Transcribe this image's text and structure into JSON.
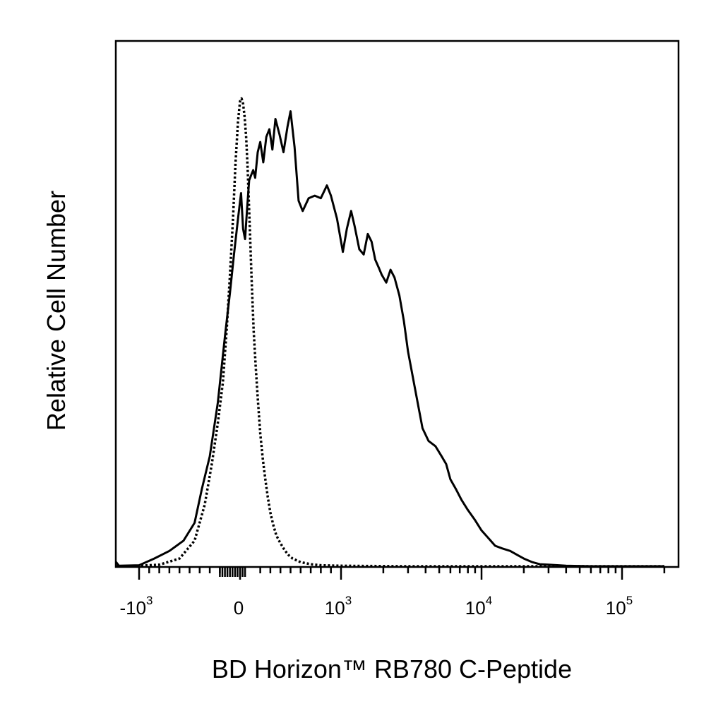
{
  "chart_data": {
    "type": "line",
    "xlabel": "BD Horizon™ RB780 C-Peptide",
    "ylabel": "Relative Cell Number",
    "x_scale": "biexponential",
    "xlim": [
      -1500,
      200000
    ],
    "ylim": [
      0,
      100
    ],
    "grid": false,
    "legend": "none",
    "x_tick_labels": [
      {
        "value": -1000,
        "base": "-10",
        "exp": "3"
      },
      {
        "value": 0,
        "base": "0",
        "exp": ""
      },
      {
        "value": 1000,
        "base": "10",
        "exp": "3"
      },
      {
        "value": 10000,
        "base": "10",
        "exp": "4"
      },
      {
        "value": 100000,
        "base": "10",
        "exp": "5"
      }
    ],
    "series": [
      {
        "style": "solid",
        "color": "#000000",
        "x": [
          -1500,
          -1200,
          -1000,
          -850,
          -700,
          -560,
          -450,
          -380,
          -300,
          -220,
          -150,
          -100,
          -60,
          -20,
          10,
          30,
          50,
          70,
          90,
          110,
          130,
          150,
          175,
          200,
          230,
          260,
          290,
          320,
          350,
          390,
          430,
          470,
          500,
          540,
          580,
          620,
          680,
          740,
          800,
          860,
          900,
          960,
          1030,
          1100,
          1180,
          1250,
          1350,
          1450,
          1550,
          1650,
          1750,
          1850,
          1950,
          2100,
          2250,
          2400,
          2600,
          2800,
          3000,
          3400,
          3800,
          4200,
          4700,
          5200,
          5600,
          6000,
          6600,
          7200,
          8000,
          9000,
          10000,
          11200,
          12500,
          14000,
          16000,
          18000,
          20000,
          23000,
          26000,
          30000,
          40000,
          60000,
          100000,
          200000
        ],
        "y": [
          0.9,
          0.1,
          0.2,
          1.5,
          3.0,
          5.0,
          8.5,
          15.0,
          21.5,
          32.0,
          45.0,
          53.5,
          61.0,
          68.0,
          73.0,
          66.0,
          64.0,
          70.0,
          75.5,
          76.5,
          77.5,
          76.0,
          81.0,
          83.0,
          79.0,
          84.0,
          85.5,
          81.5,
          87.5,
          84.5,
          81.0,
          86.0,
          89.0,
          82.0,
          71.5,
          69.5,
          72.0,
          72.5,
          72.0,
          74.5,
          72.5,
          68.0,
          61.5,
          66.0,
          69.5,
          66.5,
          62.0,
          61.0,
          65.0,
          63.5,
          60.0,
          58.5,
          57.0,
          55.5,
          58.0,
          56.5,
          53.0,
          48.0,
          42.0,
          34.0,
          27.0,
          24.5,
          23.5,
          21.5,
          20.0,
          17.0,
          15.0,
          13.0,
          11.0,
          9.0,
          7.0,
          5.5,
          4.0,
          3.5,
          3.0,
          2.2,
          1.5,
          0.8,
          0.4,
          0.3,
          0.1,
          0.0,
          0.0,
          0.0
        ]
      },
      {
        "style": "dotted",
        "color": "#000000",
        "x": [
          -1500,
          -1100,
          -800,
          -600,
          -450,
          -350,
          -280,
          -220,
          -170,
          -130,
          -100,
          -70,
          -45,
          -20,
          0,
          15,
          30,
          45,
          60,
          75,
          95,
          115,
          135,
          155,
          175,
          200,
          225,
          250,
          275,
          300,
          330,
          360,
          400,
          440,
          480,
          520,
          600,
          700,
          800,
          1000,
          1500,
          3000,
          10000,
          100000,
          200000
        ],
        "y": [
          0.0,
          0.0,
          0.3,
          1.5,
          5.0,
          12.0,
          20.0,
          28.0,
          36.0,
          47.0,
          57.0,
          68.0,
          79.0,
          87.0,
          91.0,
          91.5,
          90.5,
          88.0,
          84.0,
          78.0,
          67.0,
          56.0,
          46.0,
          39.0,
          33.0,
          26.0,
          21.0,
          17.0,
          13.5,
          10.5,
          8.0,
          6.0,
          4.5,
          3.2,
          2.2,
          1.5,
          0.8,
          0.4,
          0.2,
          0.1,
          0.05,
          0.0,
          0.0,
          0.0,
          0.0
        ]
      }
    ]
  }
}
